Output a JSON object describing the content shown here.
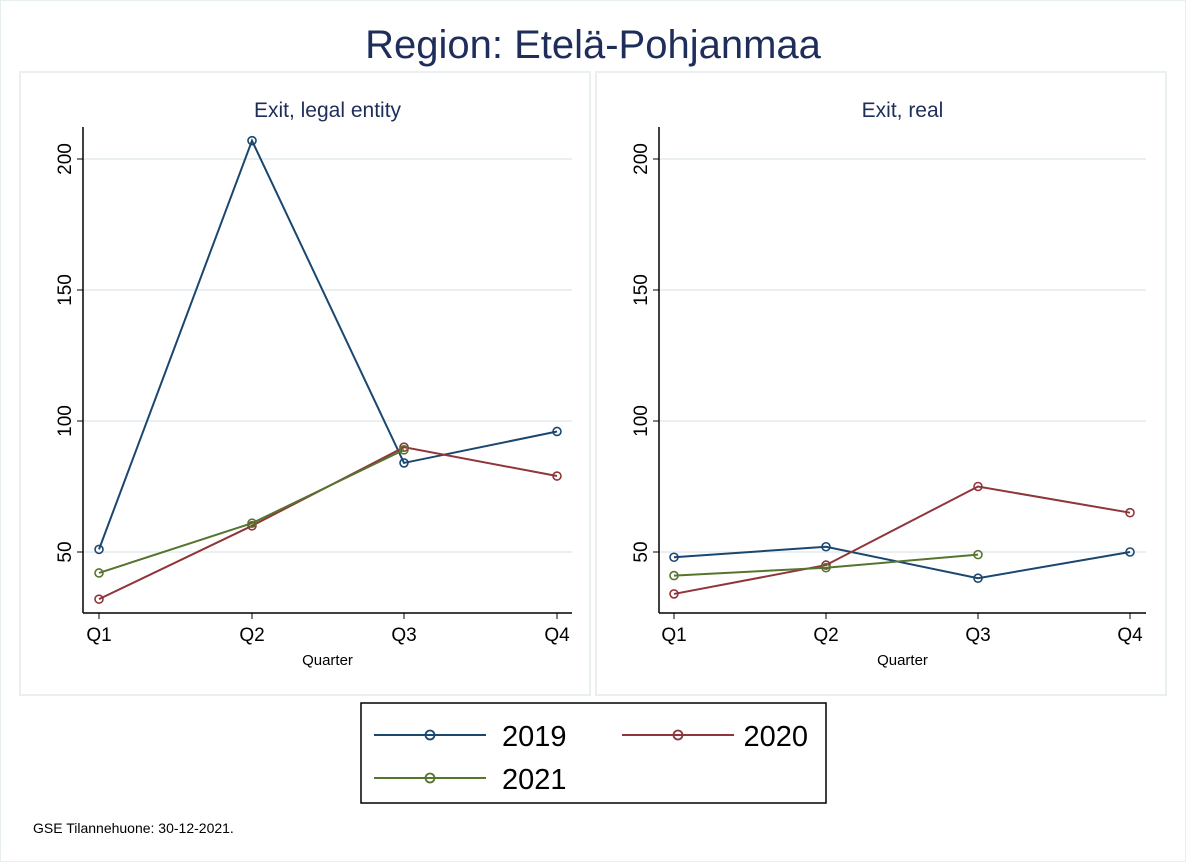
{
  "title": "Region: Etelä-Pohjanmaa",
  "footer": "GSE Tilannehuone: 30-12-2021.",
  "colors": {
    "2019": "#1a476f",
    "2020": "#90353b",
    "2021": "#55752f"
  },
  "chart_data": [
    {
      "type": "line",
      "title": "Exit, legal entity",
      "xlabel": "Quarter",
      "ylabel": "",
      "categories": [
        "Q1",
        "Q2",
        "Q3",
        "Q4"
      ],
      "yticks": [
        50,
        100,
        150,
        200
      ],
      "ylim": [
        28,
        213
      ],
      "grid": true,
      "series": [
        {
          "name": "2019",
          "values": [
            51,
            207,
            84,
            96
          ]
        },
        {
          "name": "2020",
          "values": [
            32,
            60,
            90,
            79
          ]
        },
        {
          "name": "2021",
          "values": [
            42,
            61,
            89,
            null
          ]
        }
      ]
    },
    {
      "type": "line",
      "title": "Exit, real",
      "xlabel": "Quarter",
      "ylabel": "",
      "categories": [
        "Q1",
        "Q2",
        "Q3",
        "Q4"
      ],
      "yticks": [
        50,
        100,
        150,
        200
      ],
      "ylim": [
        28,
        213
      ],
      "grid": true,
      "series": [
        {
          "name": "2019",
          "values": [
            48,
            52,
            40,
            50
          ]
        },
        {
          "name": "2020",
          "values": [
            34,
            45,
            75,
            65
          ]
        },
        {
          "name": "2021",
          "values": [
            41,
            44,
            49,
            null
          ]
        }
      ]
    }
  ],
  "legend": {
    "placement": "bottom",
    "entries": [
      "2019",
      "2020",
      "2021"
    ]
  }
}
